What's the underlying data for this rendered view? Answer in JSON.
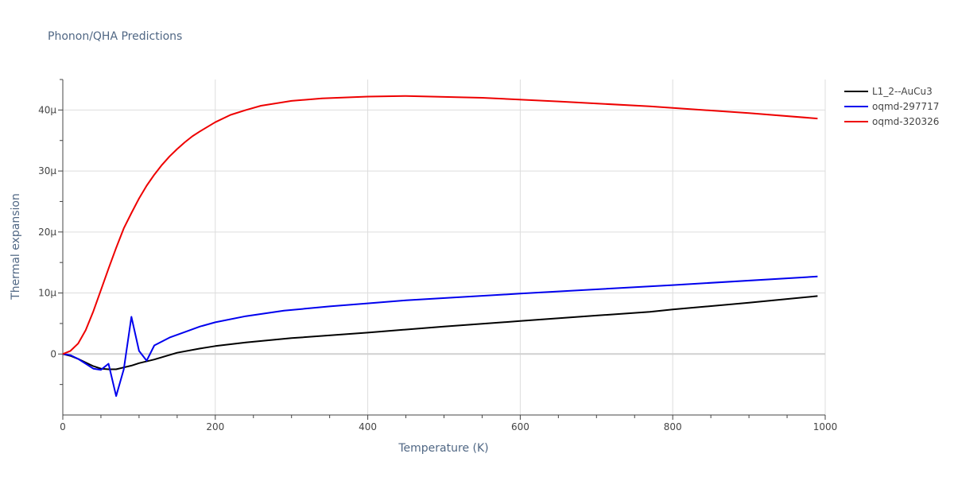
{
  "chart_data": {
    "type": "line",
    "title": "Phonon/QHA Predictions",
    "xlabel": "Temperature (K)",
    "ylabel": "Thermal expansion",
    "xlim": [
      0,
      1000
    ],
    "ylim": [
      -10,
      45
    ],
    "x_ticks": [
      0,
      200,
      400,
      600,
      800,
      1000
    ],
    "x_tick_labels": [
      "0",
      "200",
      "400",
      "600",
      "800",
      "1000"
    ],
    "y_ticks": [
      0,
      10,
      20,
      30,
      40
    ],
    "y_tick_labels": [
      "0",
      "10μ",
      "20μ",
      "30μ",
      "40μ"
    ],
    "grid": true,
    "legend_position": "top-right",
    "series": [
      {
        "name": "L1_2--AuCu3",
        "color": "#000000",
        "x": [
          0,
          10,
          20,
          30,
          40,
          50,
          60,
          70,
          80,
          90,
          100,
          120,
          150,
          180,
          200,
          240,
          300,
          400,
          500,
          600,
          700,
          770,
          800,
          900,
          990
        ],
        "y": [
          0,
          -0.3,
          -0.8,
          -1.4,
          -2.0,
          -2.4,
          -2.5,
          -2.5,
          -2.2,
          -1.9,
          -1.5,
          -0.9,
          0.2,
          0.9,
          1.3,
          1.9,
          2.6,
          3.5,
          4.5,
          5.4,
          6.3,
          6.9,
          7.3,
          8.4,
          9.5
        ]
      },
      {
        "name": "oqmd-297717",
        "color": "#0000ee",
        "x": [
          0,
          10,
          20,
          30,
          40,
          50,
          60,
          70,
          80,
          90,
          100,
          110,
          120,
          140,
          160,
          180,
          200,
          240,
          290,
          350,
          450,
          600,
          800,
          990
        ],
        "y": [
          0,
          -0.2,
          -0.8,
          -1.6,
          -2.4,
          -2.6,
          -1.6,
          -6.9,
          -2.5,
          6.1,
          0.5,
          -1.1,
          1.4,
          2.7,
          3.6,
          4.5,
          5.2,
          6.2,
          7.1,
          7.8,
          8.8,
          9.9,
          11.3,
          12.7
        ]
      },
      {
        "name": "oqmd-320326",
        "color": "#ee0000",
        "x": [
          0,
          10,
          20,
          30,
          40,
          50,
          60,
          70,
          80,
          90,
          100,
          110,
          120,
          130,
          140,
          150,
          160,
          170,
          180,
          200,
          220,
          240,
          260,
          300,
          340,
          400,
          450,
          550,
          650,
          770,
          900,
          990
        ],
        "y": [
          0,
          0.5,
          1.7,
          3.9,
          7.0,
          10.5,
          14.0,
          17.4,
          20.6,
          23.1,
          25.5,
          27.6,
          29.4,
          31.0,
          32.4,
          33.6,
          34.7,
          35.7,
          36.5,
          38.0,
          39.2,
          40.0,
          40.7,
          41.5,
          41.9,
          42.2,
          42.3,
          42.0,
          41.4,
          40.6,
          39.5,
          38.6
        ]
      }
    ]
  }
}
